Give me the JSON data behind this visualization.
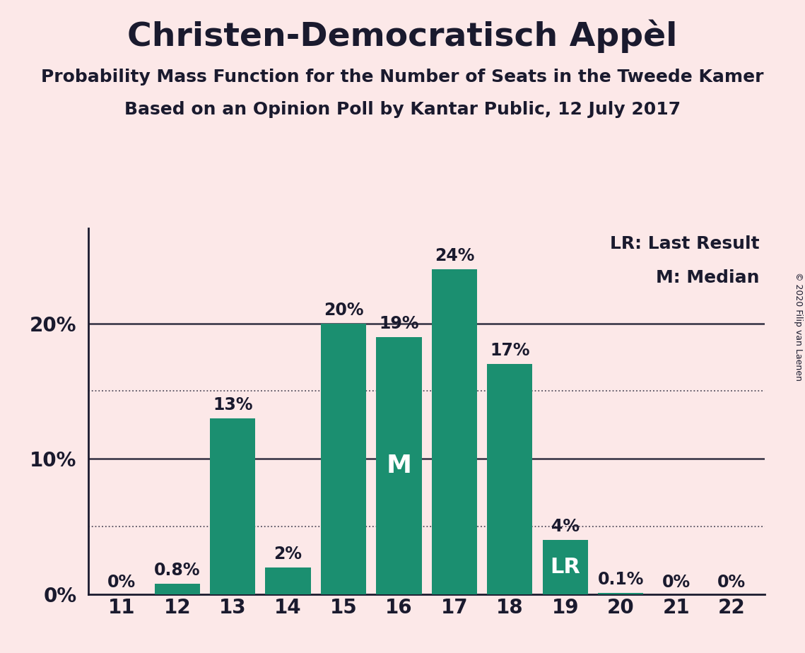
{
  "title": "Christen-Democratisch Appèl",
  "subtitle1": "Probability Mass Function for the Number of Seats in the Tweede Kamer",
  "subtitle2": "Based on an Opinion Poll by Kantar Public, 12 July 2017",
  "copyright": "© 2020 Filip van Laenen",
  "seats": [
    11,
    12,
    13,
    14,
    15,
    16,
    17,
    18,
    19,
    20,
    21,
    22
  ],
  "values": [
    0.0,
    0.8,
    13.0,
    2.0,
    20.0,
    19.0,
    24.0,
    17.0,
    4.0,
    0.1,
    0.0,
    0.0
  ],
  "labels": [
    "0%",
    "0.8%",
    "13%",
    "2%",
    "20%",
    "19%",
    "24%",
    "17%",
    "4%",
    "0.1%",
    "0%",
    "0%"
  ],
  "bar_color": "#1b8f70",
  "background_color": "#fce8e8",
  "label_color_default": "#1a1a2e",
  "label_color_white": "#ffffff",
  "median_seat": 16,
  "median_label": "M",
  "lr_seat": 19,
  "lr_label": "LR",
  "legend_lr": "LR: Last Result",
  "legend_m": "M: Median",
  "ylim": [
    0,
    27
  ],
  "dotted_lines": [
    5,
    15
  ],
  "solid_lines": [
    10,
    20
  ],
  "title_fontsize": 34,
  "subtitle_fontsize": 18,
  "label_fontsize": 17,
  "tick_fontsize": 20,
  "legend_fontsize": 18,
  "copyright_fontsize": 9,
  "inner_label_fontsize": 26,
  "lr_label_fontsize": 22
}
